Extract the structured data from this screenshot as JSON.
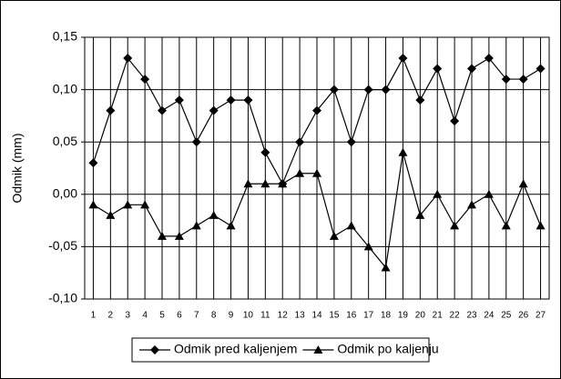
{
  "chart_data": {
    "type": "line",
    "y_label": "Odmik (mm)",
    "categories": [
      "1",
      "2",
      "3",
      "4",
      "5",
      "6",
      "7",
      "8",
      "9",
      "10",
      "11",
      "12",
      "13",
      "14",
      "15",
      "16",
      "17",
      "18",
      "19",
      "20",
      "21",
      "22",
      "23",
      "24",
      "25",
      "26",
      "27"
    ],
    "series": [
      {
        "name": "Odmik pred kaljenjem",
        "color": "#000000",
        "marker": "diamond",
        "values": [
          0.03,
          0.08,
          0.13,
          0.11,
          0.08,
          0.09,
          0.05,
          0.08,
          0.09,
          0.09,
          0.04,
          0.01,
          0.05,
          0.08,
          0.1,
          0.05,
          0.1,
          0.1,
          0.13,
          0.09,
          0.12,
          0.07,
          0.12,
          0.13,
          0.11,
          0.11,
          0.12
        ]
      },
      {
        "name": "Odmik po kaljenju",
        "color": "#000000",
        "marker": "triangle",
        "values": [
          -0.01,
          -0.02,
          -0.01,
          -0.01,
          -0.04,
          -0.04,
          -0.03,
          -0.02,
          -0.03,
          0.01,
          0.01,
          0.01,
          0.02,
          0.02,
          -0.04,
          -0.03,
          -0.05,
          -0.07,
          0.04,
          -0.02,
          0.0,
          -0.03,
          -0.01,
          0.0,
          -0.03,
          0.01,
          -0.03
        ]
      }
    ],
    "ylim": [
      -0.1,
      0.15
    ],
    "yticks": [
      {
        "value": -0.1,
        "label": "-0,10"
      },
      {
        "value": -0.05,
        "label": "-0,05"
      },
      {
        "value": 0.0,
        "label": "0,00"
      },
      {
        "value": 0.05,
        "label": "0,05"
      },
      {
        "value": 0.1,
        "label": "0,10"
      },
      {
        "value": 0.15,
        "label": "0,15"
      }
    ],
    "grid": true,
    "legend": "bottom"
  }
}
